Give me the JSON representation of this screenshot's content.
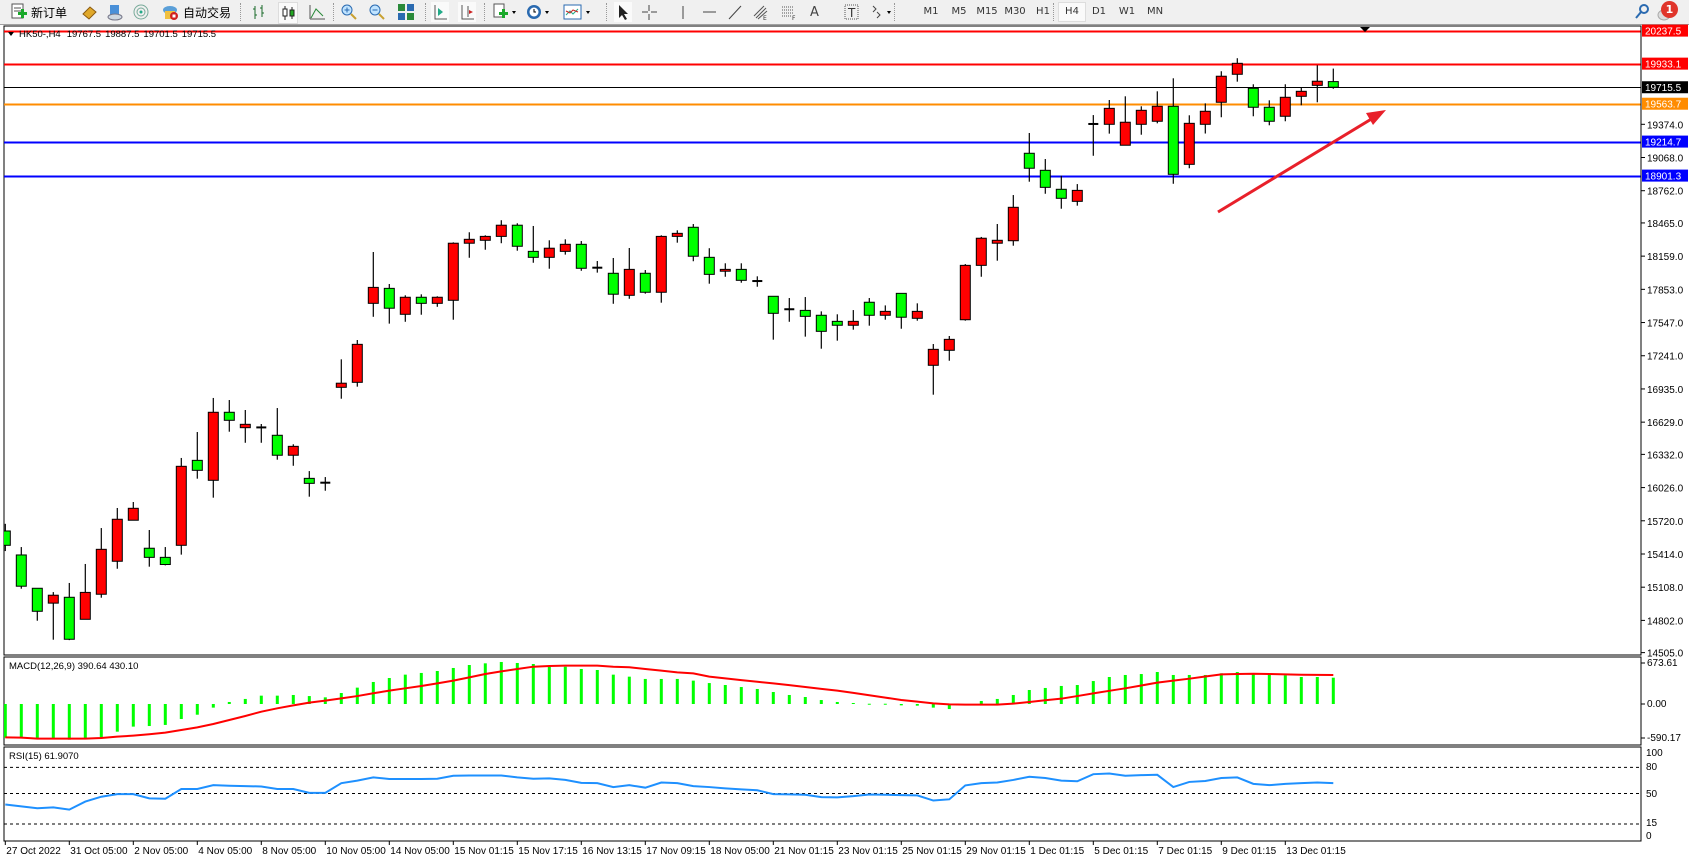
{
  "toolbar": {
    "new_order": "新订单",
    "auto_trading": "自动交易",
    "timeframes": [
      "M1",
      "M5",
      "M15",
      "M30",
      "H1",
      "H4",
      "D1",
      "W1",
      "MN"
    ],
    "active_timeframe": "H4",
    "notification_count": "1",
    "icons": [
      "new-order-icon",
      "gold-icon",
      "market-watch-icon",
      "signals-icon",
      "auto-trading-icon",
      "bar-chart-icon",
      "candlestick-icon",
      "line-chart-icon",
      "zoom-in-icon",
      "zoom-out-icon",
      "tile-windows-icon",
      "autoscroll-icon",
      "chart-shift-icon",
      "new-chart-icon",
      "periods-icon",
      "templates-icon",
      "cursor-icon",
      "crosshair-icon",
      "vertical-line-icon",
      "horizontal-line-icon",
      "trendline-icon",
      "fibonacci-channel-icon",
      "fibonacci-icon",
      "text-icon",
      "text-label-icon",
      "arrows-icon",
      "search-icon",
      "notification-icon"
    ]
  },
  "header": {
    "symbol": "HK50-,H4",
    "open": "19767.5",
    "high": "19887.5",
    "low": "19701.5",
    "close": "19715.5"
  },
  "colors": {
    "up": "#ff0000",
    "down": "#00ff00",
    "macd_hist": "#00ff00",
    "macd_signal": "#ff0000",
    "rsi": "#1e90ff",
    "arrow": "#e8202a"
  },
  "chart_data": [
    {
      "type": "candlestick",
      "title": "HK50-,H4",
      "ylim": [
        14505.0,
        20237.5
      ],
      "y_ticks": [
        "19374.0",
        "19068.0",
        "18762.0",
        "18465.0",
        "18159.0",
        "17853.0",
        "17547.0",
        "17241.0",
        "16935.0",
        "16629.0",
        "16332.0",
        "16026.0",
        "15720.0",
        "15414.0",
        "15108.0",
        "14802.0",
        "14505.0"
      ],
      "x_labels": [
        "27 Oct 2022",
        "31 Oct 05:00",
        "2 Nov 05:00",
        "4 Nov 05:00",
        "8 Nov 05:00",
        "10 Nov 05:00",
        "14 Nov 05:00",
        "15 Nov 01:15",
        "15 Nov 17:15",
        "16 Nov 13:15",
        "17 Nov 09:15",
        "18 Nov 05:00",
        "21 Nov 01:15",
        "23 Nov 01:15",
        "25 Nov 01:15",
        "29 Nov 01:15",
        "1 Dec 01:15",
        "5 Dec 01:15",
        "7 Dec 01:15",
        "9 Dec 01:15",
        "13 Dec 01:15"
      ],
      "ohlc": [
        [
          15626,
          15692,
          15441,
          15494
        ],
        [
          15405,
          15478,
          15094,
          15117
        ],
        [
          15098,
          15098,
          14799,
          14886
        ],
        [
          14961,
          15063,
          14624,
          15034
        ],
        [
          15015,
          15147,
          14620,
          14628
        ],
        [
          14812,
          15322,
          14812,
          15060
        ],
        [
          15043,
          15653,
          15011,
          15457
        ],
        [
          15347,
          15838,
          15278,
          15734
        ],
        [
          15725,
          15893,
          15725,
          15835
        ],
        [
          15467,
          15635,
          15297,
          15383
        ],
        [
          15383,
          15478,
          15309,
          15317
        ],
        [
          15494,
          16299,
          15408,
          16222
        ],
        [
          16277,
          16538,
          16108,
          16185
        ],
        [
          16093,
          16852,
          15933,
          16720
        ],
        [
          16720,
          16833,
          16541,
          16646
        ],
        [
          16578,
          16741,
          16439,
          16609
        ],
        [
          16583,
          16612,
          16439,
          16578
        ],
        [
          16508,
          16759,
          16283,
          16324
        ],
        [
          16324,
          16425,
          16227,
          16406
        ],
        [
          16111,
          16178,
          15942,
          16065
        ],
        [
          16072,
          16123,
          15997,
          16070
        ],
        [
          16950,
          17208,
          16845,
          16988
        ],
        [
          16996,
          17386,
          16956,
          17346
        ],
        [
          17724,
          18197,
          17600,
          17871
        ],
        [
          17862,
          17902,
          17537,
          17679
        ],
        [
          17623,
          17798,
          17554,
          17780
        ],
        [
          17780,
          17807,
          17619,
          17724
        ],
        [
          17724,
          17789,
          17692,
          17780
        ],
        [
          17752,
          18286,
          17573,
          18278
        ],
        [
          18278,
          18379,
          18144,
          18314
        ],
        [
          18305,
          18351,
          18218,
          18341
        ],
        [
          18341,
          18490,
          18278,
          18444
        ],
        [
          18444,
          18462,
          18209,
          18250
        ],
        [
          18203,
          18437,
          18098,
          18148
        ],
        [
          18148,
          18305,
          18043,
          18232
        ],
        [
          18203,
          18314,
          18173,
          18268
        ],
        [
          18268,
          18298,
          18024,
          18047
        ],
        [
          18055,
          18114,
          18007,
          18050
        ],
        [
          18001,
          18142,
          17720,
          17808
        ],
        [
          17798,
          18234,
          17766,
          18037
        ],
        [
          18001,
          18031,
          17813,
          17826
        ],
        [
          17826,
          18351,
          17730,
          18341
        ],
        [
          18341,
          18397,
          18283,
          18369
        ],
        [
          18425,
          18455,
          18112,
          18158
        ],
        [
          18148,
          18232,
          17905,
          17991
        ],
        [
          18020,
          18093,
          17969,
          18037
        ],
        [
          18037,
          18093,
          17914,
          17936
        ],
        [
          17932,
          17973,
          17877,
          17927
        ],
        [
          17789,
          17789,
          17389,
          17632
        ],
        [
          17672,
          17773,
          17554,
          17667
        ],
        [
          17659,
          17782,
          17417,
          17604
        ],
        [
          17614,
          17650,
          17306,
          17466
        ],
        [
          17558,
          17623,
          17380,
          17522
        ],
        [
          17522,
          17662,
          17481,
          17558
        ],
        [
          17734,
          17773,
          17518,
          17614
        ],
        [
          17614,
          17705,
          17573,
          17650
        ],
        [
          17816,
          17816,
          17490,
          17596
        ],
        [
          17586,
          17724,
          17564,
          17650
        ],
        [
          17153,
          17349,
          16882,
          17300
        ],
        [
          17291,
          17423,
          17195,
          17392
        ],
        [
          17573,
          18086,
          17564,
          18074
        ],
        [
          18074,
          18336,
          17969,
          18324
        ],
        [
          18278,
          18455,
          18117,
          18305
        ],
        [
          18301,
          18722,
          18255,
          18609
        ],
        [
          19107,
          19294,
          18845,
          18969
        ],
        [
          18950,
          19054,
          18734,
          18793
        ],
        [
          18775,
          18900,
          18596,
          18692
        ],
        [
          18664,
          18823,
          18624,
          18765
        ],
        [
          19380,
          19459,
          19084,
          19374
        ],
        [
          19374,
          19598,
          19288,
          19521
        ],
        [
          19181,
          19632,
          19181,
          19393
        ],
        [
          19374,
          19540,
          19278,
          19503
        ],
        [
          19402,
          19678,
          19383,
          19540
        ],
        [
          19540,
          19798,
          18826,
          18913
        ],
        [
          19005,
          19457,
          18969,
          19383
        ],
        [
          19374,
          19567,
          19289,
          19494
        ],
        [
          19577,
          19863,
          19439,
          19817
        ],
        [
          19835,
          19983,
          19767,
          19936
        ],
        [
          19706,
          19743,
          19448,
          19531
        ],
        [
          19531,
          19595,
          19365,
          19402
        ],
        [
          19448,
          19743,
          19402,
          19623
        ],
        [
          19632,
          19715,
          19549,
          19678
        ],
        [
          19733,
          19918,
          19577,
          19771
        ],
        [
          19767.5,
          19887.5,
          19701.5,
          19715.5
        ]
      ],
      "levels": [
        {
          "price": "20237.5",
          "color": "#ff0000"
        },
        {
          "price": "19933.1",
          "color": "#ff0000"
        },
        {
          "price": "19715.5",
          "color": "#000000"
        },
        {
          "price": "19563.7",
          "color": "#ff8c00"
        },
        {
          "price": "19214.7",
          "color": "#0000ff"
        },
        {
          "price": "18901.3",
          "color": "#0000ff"
        }
      ]
    },
    {
      "type": "bar+line",
      "title": "MACD(12,26,9) 390.64 430.10",
      "ylim": [
        -590.17,
        673.61
      ],
      "y_ticks": [
        "673.61",
        "0.00",
        "-590.17"
      ],
      "histogram": [
        -500,
        -500,
        -510,
        -510,
        -530,
        -520,
        -510,
        -411,
        -336,
        -327,
        -311,
        -223,
        -159,
        -54,
        30,
        75,
        124,
        124,
        134,
        118,
        99,
        163,
        243,
        327,
        386,
        436,
        461,
        490,
        535,
        579,
        604,
        624,
        609,
        594,
        565,
        554,
        520,
        505,
        436,
        406,
        372,
        372,
        372,
        347,
        311,
        282,
        252,
        223,
        178,
        134,
        104,
        59,
        30,
        15,
        4,
        4,
        -20,
        -25,
        -54,
        -75,
        -5,
        45,
        75,
        134,
        208,
        238,
        268,
        282,
        341,
        401,
        431,
        445,
        475,
        431,
        431,
        431,
        456,
        475,
        441,
        441,
        426,
        401,
        401,
        390.64
      ],
      "signal": [
        -495,
        -500,
        -515,
        -515,
        -515,
        -515,
        -505,
        -485,
        -470,
        -450,
        -425,
        -386,
        -347,
        -297,
        -238,
        -178,
        -114,
        -64,
        -20,
        20,
        50,
        84,
        118,
        159,
        198,
        233,
        268,
        307,
        347,
        396,
        445,
        485,
        520,
        554,
        565,
        570,
        570,
        570,
        554,
        545,
        520,
        495,
        470,
        455,
        406,
        380,
        355,
        330,
        307,
        280,
        252,
        225,
        198,
        165,
        130,
        95,
        59,
        35,
        10,
        -5,
        -10,
        -10,
        -10,
        5,
        30,
        55,
        79,
        118,
        158,
        196,
        233,
        275,
        317,
        347,
        376,
        408,
        440,
        445,
        450,
        445,
        440,
        435,
        432,
        430.1
      ]
    },
    {
      "type": "line",
      "title": "RSI(15) 61.9070",
      "ylim": [
        0,
        100
      ],
      "y_ticks": [
        "100",
        "80",
        "50",
        "15",
        "0"
      ],
      "levels": [
        80,
        50,
        15
      ],
      "values": [
        37.4,
        35.2,
        33,
        34,
        31.5,
        40.7,
        46.3,
        49.3,
        49.3,
        44.4,
        44,
        55.2,
        55.2,
        59.6,
        58.9,
        58.5,
        58.1,
        55.2,
        55.2,
        50.7,
        50.7,
        61.9,
        64.8,
        68.5,
        66.7,
        66.7,
        66.7,
        67,
        70.4,
        70.7,
        70.7,
        70.7,
        68.5,
        67,
        67.4,
        65.6,
        62.2,
        61.9,
        57.4,
        59.6,
        56.7,
        62.6,
        61.9,
        58.5,
        57.4,
        55.9,
        54.8,
        53.7,
        49.3,
        49,
        48.5,
        45.9,
        45.6,
        47,
        48.9,
        48.5,
        48.1,
        47.8,
        41.9,
        43.3,
        59.3,
        61.9,
        62.6,
        65.6,
        69.3,
        67.8,
        64.8,
        64.1,
        72.2,
        73,
        70.4,
        71.1,
        71.5,
        57.4,
        63.3,
        64.4,
        67.8,
        68.5,
        61.1,
        59.6,
        61.1,
        61.9,
        62.6,
        61.907
      ]
    }
  ]
}
